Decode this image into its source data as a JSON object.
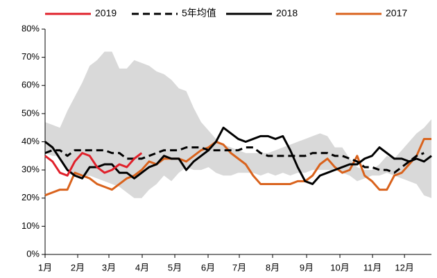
{
  "chart_data": {
    "type": "line",
    "x": [
      0,
      1,
      2,
      3,
      4,
      5,
      6,
      7,
      8,
      9,
      10,
      11,
      12,
      13,
      14,
      15,
      16,
      17,
      18,
      19,
      20,
      21,
      22,
      23,
      24,
      25,
      26,
      27,
      28,
      29,
      30,
      31,
      32,
      33,
      34,
      35,
      36,
      37,
      38,
      39,
      40,
      41,
      42,
      43,
      44,
      45,
      46,
      47,
      48,
      49,
      50,
      51,
      52
    ],
    "xlim": [
      0,
      52
    ],
    "xticks": [
      {
        "value": 0,
        "label": "1月"
      },
      {
        "value": 4.39,
        "label": "2月"
      },
      {
        "value": 8.59,
        "label": "3月"
      },
      {
        "value": 13.07,
        "label": "4月"
      },
      {
        "value": 17.46,
        "label": "5月"
      },
      {
        "value": 21.94,
        "label": "6月"
      },
      {
        "value": 26.14,
        "label": "7月"
      },
      {
        "value": 30.62,
        "label": "8月"
      },
      {
        "value": 35.2,
        "label": "9月"
      },
      {
        "value": 39.68,
        "label": "10月"
      },
      {
        "value": 44.07,
        "label": "11月"
      },
      {
        "value": 48.37,
        "label": "12月"
      }
    ],
    "ylim": [
      0,
      80
    ],
    "yticks": [
      {
        "value": 0,
        "label": "0%"
      },
      {
        "value": 10,
        "label": "10%"
      },
      {
        "value": 20,
        "label": "20%"
      },
      {
        "value": 30,
        "label": "30%"
      },
      {
        "value": 40,
        "label": "40%"
      },
      {
        "value": 50,
        "label": "50%"
      },
      {
        "value": 60,
        "label": "60%"
      },
      {
        "value": 70,
        "label": "70%"
      },
      {
        "value": 80,
        "label": "80%"
      }
    ],
    "band": {
      "color": "#d9d9d9",
      "upper": [
        47,
        46,
        45,
        51,
        56,
        61,
        67,
        69,
        72,
        72,
        66,
        66,
        69,
        68,
        67,
        65,
        64,
        62,
        59,
        58,
        52,
        47,
        44,
        41,
        39,
        38,
        37,
        36,
        36,
        36,
        36,
        37,
        38,
        39,
        40,
        41,
        42,
        43,
        42,
        38,
        38,
        34,
        31,
        30,
        30,
        32,
        35,
        34,
        37,
        40,
        43,
        45,
        48
      ],
      "lower": [
        36,
        35,
        35,
        30,
        28,
        27,
        28,
        27,
        26,
        25,
        24,
        22,
        20,
        20,
        23,
        25,
        28,
        26,
        29,
        31,
        30,
        30,
        31,
        29,
        28,
        28,
        29,
        29,
        29,
        28,
        29,
        28,
        29,
        28,
        29,
        29,
        30,
        30,
        30,
        30,
        29,
        28,
        26,
        27,
        28,
        28,
        29,
        28,
        27,
        26,
        25,
        21,
        20
      ]
    },
    "series": [
      {
        "name": "2019",
        "color": "#e0202a",
        "dash": false,
        "values": [
          35,
          33,
          29,
          28,
          33,
          36,
          35,
          31,
          29,
          30,
          32,
          31,
          34,
          36,
          null,
          null,
          null,
          null,
          null,
          null,
          null,
          null,
          null,
          null,
          null,
          null,
          null,
          null,
          null,
          null,
          null,
          null,
          null,
          null,
          null,
          null,
          null,
          null,
          null,
          null,
          null,
          null,
          null,
          null,
          null,
          null,
          null,
          null,
          null,
          null,
          null,
          null,
          null
        ]
      },
      {
        "name": "5年均值",
        "color": "#000000",
        "dash": true,
        "values": [
          36,
          37,
          37,
          35,
          37,
          37,
          37,
          37,
          37,
          36,
          36,
          34,
          34,
          34,
          35,
          36,
          37,
          37,
          37,
          38,
          38,
          38,
          37,
          37,
          37,
          37,
          37,
          38,
          38,
          36,
          35,
          35,
          35,
          35,
          35,
          35,
          36,
          36,
          36,
          35,
          35,
          34,
          33,
          31,
          31,
          30,
          30,
          29,
          31,
          33,
          35,
          36,
          null
        ]
      },
      {
        "name": "2018",
        "color": "#000000",
        "dash": false,
        "values": [
          40,
          38,
          34,
          30,
          28,
          27,
          31,
          31,
          32,
          32,
          29,
          29,
          27,
          29,
          31,
          32,
          35,
          34,
          34,
          30,
          33,
          35,
          37,
          40,
          45,
          43,
          41,
          40,
          41,
          42,
          42,
          41,
          42,
          37,
          31,
          26,
          25,
          28,
          29,
          30,
          31,
          32,
          32,
          34,
          35,
          38,
          36,
          34,
          34,
          33,
          34,
          33,
          35
        ]
      },
      {
        "name": "2017",
        "color": "#d9621c",
        "dash": false,
        "values": [
          21,
          22,
          23,
          23,
          29,
          28,
          27,
          25,
          24,
          23,
          25,
          27,
          28,
          30,
          33,
          32,
          34,
          34,
          34,
          33,
          35,
          37,
          38,
          40,
          39,
          36,
          34,
          32,
          28,
          25,
          25,
          25,
          25,
          25,
          26,
          26,
          28,
          32,
          34,
          31,
          29,
          30,
          35,
          28,
          26,
          23,
          23,
          28,
          29,
          32,
          35,
          41,
          41
        ]
      }
    ]
  }
}
